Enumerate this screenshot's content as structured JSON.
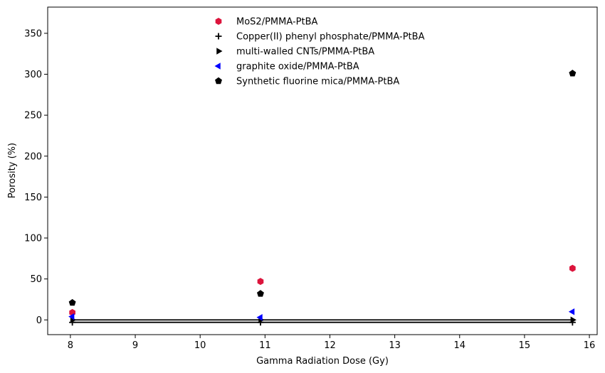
{
  "chart_data": {
    "type": "scatter",
    "title": "",
    "xlabel": "Gamma Radiation Dose (Gy)",
    "ylabel": "Porosity (%)",
    "xlim": [
      7.65,
      16.12
    ],
    "ylim": [
      -18,
      382
    ],
    "xticks": [
      8,
      9,
      10,
      11,
      12,
      13,
      14,
      15,
      16
    ],
    "yticks": [
      0,
      50,
      100,
      150,
      200,
      250,
      300,
      350
    ],
    "grid": false,
    "legend_position": "top-center",
    "series": [
      {
        "name": "MoS2/PMMA-PtBA",
        "marker": "hexagon",
        "color": "#dc143c",
        "x": [
          8.03,
          10.93,
          15.74
        ],
        "y": [
          9,
          47,
          63
        ]
      },
      {
        "name": "Copper(II) phenyl phosphate/PMMA-PtBA",
        "marker": "plus",
        "color": "#000000",
        "x": [
          8.03,
          10.93,
          15.74
        ],
        "y": [
          -3,
          -3,
          -3
        ]
      },
      {
        "name": "multi-walled CNTs/PMMA-PtBA",
        "marker": "triangle-right",
        "color": "#000000",
        "x": [
          8.03,
          10.93,
          15.74
        ],
        "y": [
          0,
          0,
          0
        ]
      },
      {
        "name": "graphite oxide/PMMA-PtBA",
        "marker": "triangle-left",
        "color": "#0000ff",
        "x": [
          8.03,
          10.93,
          15.74
        ],
        "y": [
          4,
          3,
          10
        ]
      },
      {
        "name": "Synthetic fluorine mica/PMMA-PtBA",
        "marker": "pentagon",
        "color": "#000000",
        "x": [
          8.03,
          10.93,
          15.74
        ],
        "y": [
          21,
          32,
          301
        ]
      }
    ]
  }
}
